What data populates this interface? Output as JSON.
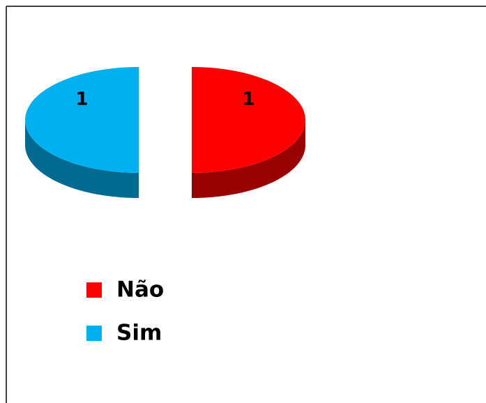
{
  "chart_data": {
    "type": "pie",
    "categories": [
      "Não",
      "Sim"
    ],
    "values": [
      1,
      1
    ],
    "colors": [
      "#ff0000",
      "#00b0f0"
    ],
    "legend": "bottom-left"
  }
}
